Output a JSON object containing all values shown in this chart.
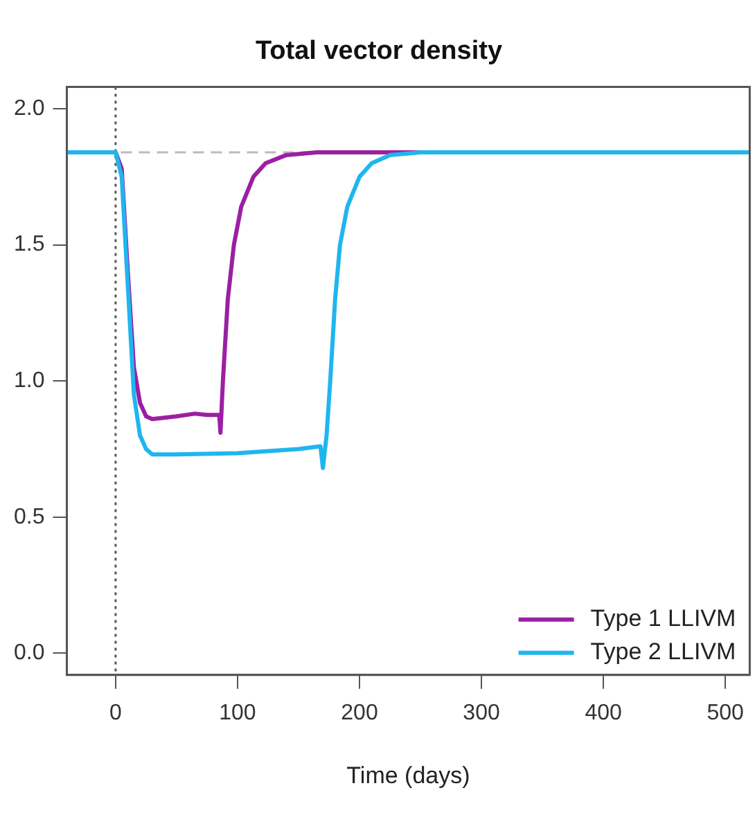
{
  "chart_data": {
    "type": "line",
    "title": "Total vector density",
    "xlabel": "Time (days)",
    "xlim": [
      -40,
      520
    ],
    "xticks": [
      0,
      100,
      200,
      300,
      400,
      500
    ],
    "ylim": [
      -0.08,
      2.08
    ],
    "yticks": [
      {
        "value": 0,
        "label": "0.0"
      },
      0.5,
      {
        "value": 1,
        "label": "1.0"
      },
      1.5,
      {
        "value": 2,
        "label": "2.0"
      }
    ],
    "grid": false,
    "legend": "bottom right",
    "marker": "none",
    "line_style": "solid",
    "ref_lines": [
      {
        "axis": "x",
        "value": 0,
        "color": "#555555",
        "line_style": "dotted"
      },
      {
        "axis": "y",
        "value": 1.84,
        "color": "#bbbbbb",
        "line_style": "dashed"
      }
    ],
    "series": [
      {
        "name": "Type 1 LLIVM",
        "color": "#9b1fa3",
        "x": [
          -40,
          0,
          5,
          10,
          15,
          20,
          25,
          30,
          40,
          50,
          65,
          75,
          85,
          86,
          88,
          92,
          97,
          103,
          113,
          123,
          140,
          165,
          520
        ],
        "values": [
          1.84,
          1.84,
          1.78,
          1.4,
          1.05,
          0.92,
          0.87,
          0.86,
          0.865,
          0.87,
          0.88,
          0.875,
          0.875,
          0.81,
          1.0,
          1.3,
          1.5,
          1.64,
          1.75,
          1.8,
          1.83,
          1.84,
          1.84
        ]
      },
      {
        "name": "Type 2 LLIVM",
        "color": "#1fb6ee",
        "x": [
          -40,
          0,
          5,
          10,
          15,
          20,
          25,
          30,
          50,
          100,
          150,
          168,
          170,
          173,
          176,
          180,
          184,
          190,
          200,
          210,
          225,
          250,
          520
        ],
        "values": [
          1.84,
          1.84,
          1.75,
          1.35,
          0.95,
          0.8,
          0.75,
          0.73,
          0.73,
          0.735,
          0.75,
          0.76,
          0.68,
          0.8,
          1.0,
          1.3,
          1.5,
          1.64,
          1.75,
          1.8,
          1.83,
          1.84,
          1.84
        ]
      }
    ]
  }
}
